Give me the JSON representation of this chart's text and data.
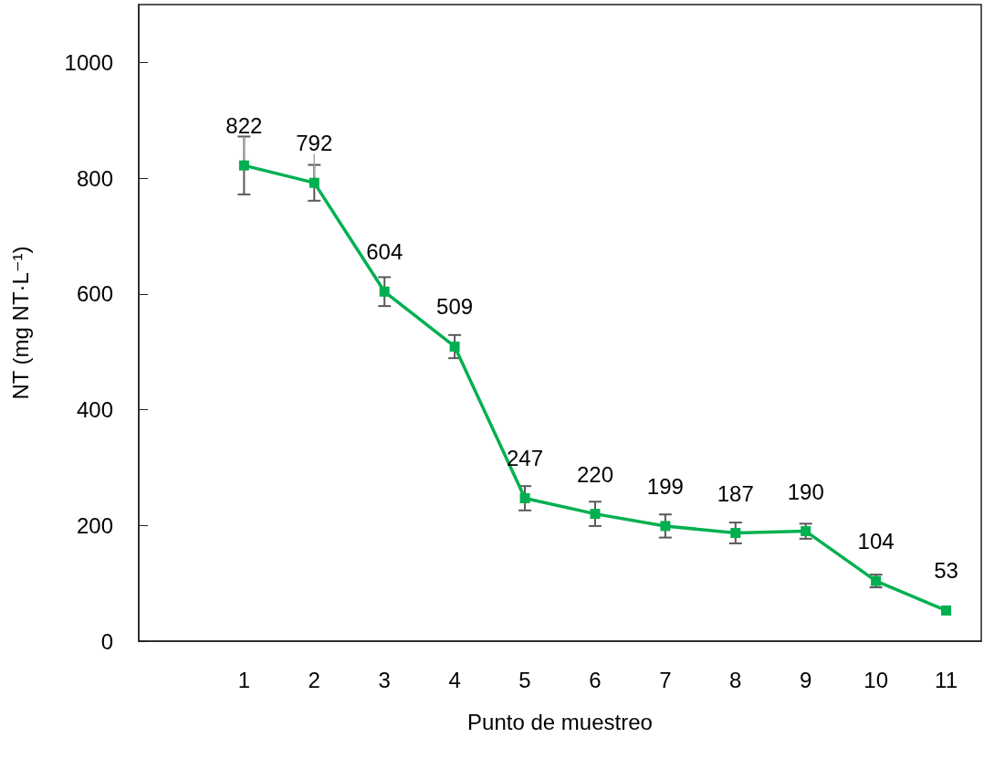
{
  "chart_data": {
    "type": "line",
    "xlabel": "Punto de muestreo",
    "ylabel": "NT (mg NT·L⁻¹)",
    "x": [
      1,
      2,
      3,
      4,
      5,
      6,
      7,
      8,
      9,
      10,
      11
    ],
    "series": [
      {
        "color": "#00b050",
        "values": [
          822,
          792,
          604,
          509,
          247,
          220,
          199,
          187,
          190,
          104,
          53
        ],
        "errors": [
          50,
          31,
          25,
          20,
          21,
          21,
          20,
          18,
          13,
          11,
          null
        ]
      }
    ],
    "xlim": [
      -0.5,
      11.5
    ],
    "xticks": [
      1,
      2,
      3,
      4,
      5,
      6,
      7,
      8,
      9,
      10,
      11
    ],
    "ylim": [
      0,
      1100
    ],
    "yticks": [
      0,
      200,
      400,
      600,
      800,
      1000
    ],
    "marker": "square",
    "line_style": "solid",
    "grid": false,
    "data_labels": true
  }
}
